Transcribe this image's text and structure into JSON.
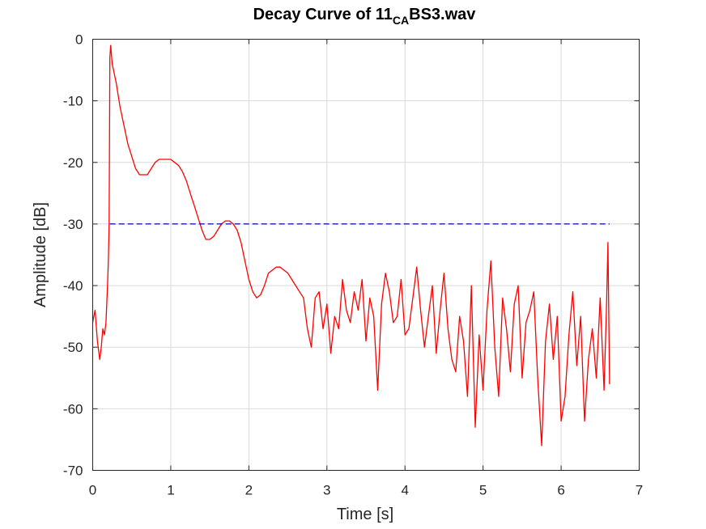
{
  "chart_data": {
    "type": "line",
    "title_main": "Decay Curve of 11",
    "title_sub": "CA",
    "title_end": "BS3.wav",
    "xlabel": "Time [s]",
    "ylabel": "Amplitude [dB]",
    "xlim": [
      0,
      7
    ],
    "ylim": [
      -70,
      0
    ],
    "xticks": [
      0,
      1,
      2,
      3,
      4,
      5,
      6,
      7
    ],
    "yticks": [
      0,
      -10,
      -20,
      -30,
      -40,
      -50,
      -60,
      -70
    ],
    "grid": true,
    "colors": {
      "curve": "#ff0000",
      "reference": "#0000b3"
    },
    "series": [
      {
        "style": "solid",
        "color": "#ff0000",
        "x": [
          0.0,
          0.03,
          0.06,
          0.09,
          0.11,
          0.13,
          0.15,
          0.17,
          0.19,
          0.2,
          0.21,
          0.22,
          0.23,
          0.25,
          0.3,
          0.35,
          0.4,
          0.45,
          0.5,
          0.55,
          0.6,
          0.65,
          0.7,
          0.75,
          0.8,
          0.85,
          0.9,
          0.95,
          1.0,
          1.05,
          1.1,
          1.15,
          1.2,
          1.25,
          1.3,
          1.35,
          1.4,
          1.45,
          1.5,
          1.55,
          1.6,
          1.65,
          1.7,
          1.75,
          1.8,
          1.85,
          1.9,
          1.95,
          2.0,
          2.05,
          2.1,
          2.15,
          2.2,
          2.25,
          2.3,
          2.35,
          2.4,
          2.45,
          2.5,
          2.55,
          2.6,
          2.65,
          2.7,
          2.75,
          2.8,
          2.85,
          2.9,
          2.95,
          3.0,
          3.05,
          3.1,
          3.15,
          3.2,
          3.25,
          3.3,
          3.35,
          3.4,
          3.45,
          3.5,
          3.55,
          3.6,
          3.65,
          3.7,
          3.75,
          3.8,
          3.85,
          3.9,
          3.95,
          4.0,
          4.05,
          4.1,
          4.15,
          4.2,
          4.25,
          4.3,
          4.35,
          4.4,
          4.45,
          4.5,
          4.55,
          4.6,
          4.65,
          4.7,
          4.75,
          4.8,
          4.85,
          4.9,
          4.95,
          5.0,
          5.05,
          5.1,
          5.15,
          5.2,
          5.25,
          5.3,
          5.35,
          5.4,
          5.45,
          5.5,
          5.55,
          5.6,
          5.65,
          5.7,
          5.75,
          5.8,
          5.85,
          5.9,
          5.95,
          6.0,
          6.05,
          6.1,
          6.15,
          6.2,
          6.25,
          6.3,
          6.35,
          6.4,
          6.45,
          6.5,
          6.55,
          6.58,
          6.6,
          6.62
        ],
        "y": [
          -46,
          -44,
          -49,
          -52,
          -50,
          -47,
          -48,
          -46,
          -40,
          -36,
          -30,
          -3,
          -1,
          -4,
          -7,
          -11,
          -14,
          -17,
          -19,
          -21,
          -22,
          -22,
          -22,
          -21,
          -20,
          -19.5,
          -19.5,
          -19.5,
          -19.5,
          -20,
          -20.5,
          -21.5,
          -23,
          -25,
          -27,
          -29,
          -31,
          -32.5,
          -32.5,
          -32,
          -31,
          -30,
          -29.5,
          -29.5,
          -30,
          -31,
          -33,
          -36,
          -39,
          -41,
          -42,
          -41.5,
          -40,
          -38,
          -37.5,
          -37,
          -37,
          -37.5,
          -38,
          -39,
          -40,
          -41,
          -42,
          -47,
          -50,
          -42,
          -41,
          -47,
          -43,
          -51,
          -45,
          -47,
          -39,
          -44,
          -46,
          -41,
          -44,
          -39,
          -49,
          -42,
          -45,
          -57,
          -43,
          -38,
          -41,
          -46,
          -45,
          -39,
          -48,
          -47,
          -42,
          -37,
          -44,
          -50,
          -45,
          -40,
          -51,
          -44,
          -38,
          -47,
          -52,
          -54,
          -45,
          -49,
          -58,
          -40,
          -63,
          -48,
          -57,
          -44,
          -36,
          -50,
          -58,
          -42,
          -47,
          -54,
          -43,
          -40,
          -55,
          -46,
          -44,
          -41,
          -55,
          -66,
          -49,
          -43,
          -52,
          -45,
          -62,
          -58,
          -48,
          -41,
          -53,
          -45,
          -62,
          -52,
          -47,
          -55,
          -42,
          -57,
          -44,
          -33,
          -56
        ]
      },
      {
        "style": "dashed",
        "color": "#0000b3",
        "x": [
          0.22,
          6.62
        ],
        "y": [
          -30,
          -30
        ]
      }
    ]
  }
}
